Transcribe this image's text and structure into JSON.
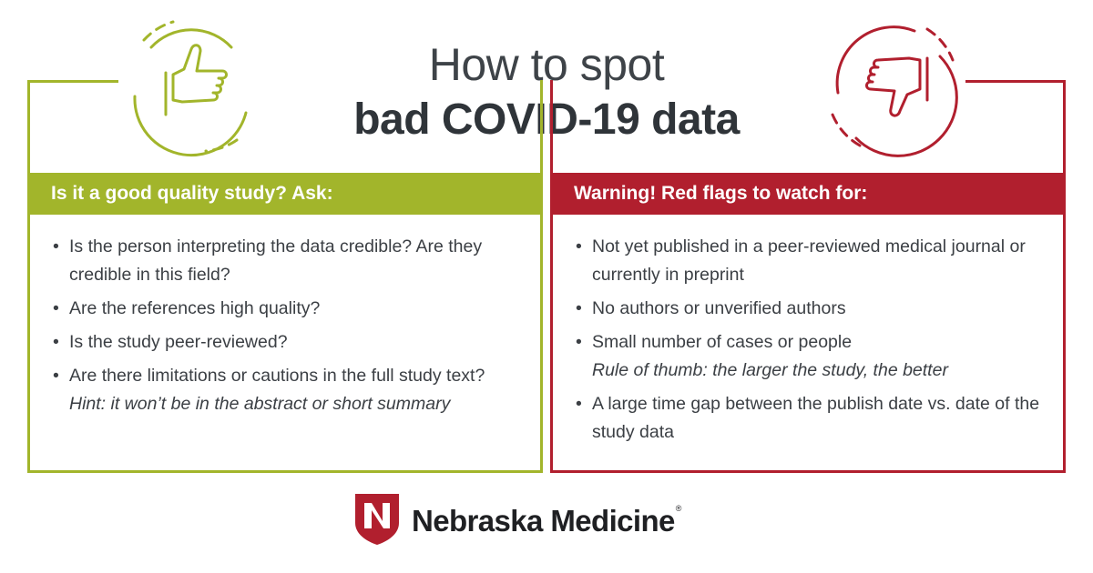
{
  "header": {
    "title_line1": "How to spot",
    "title_line2": "bad COVID-19 data"
  },
  "good_panel": {
    "heading": "Is it a good quality study? Ask:",
    "items": [
      {
        "text": "Is the person interpreting the data credible? Are they credible in this field?",
        "hint": ""
      },
      {
        "text": "Are the references high quality?",
        "hint": ""
      },
      {
        "text": "Is the study peer-reviewed?",
        "hint": ""
      },
      {
        "text": "Are there limitations or cautions in the full study text?",
        "hint": "Hint: it won’t be in the abstract or short summary"
      }
    ],
    "icon": "thumbs-up-icon",
    "color": "#a2b52b"
  },
  "bad_panel": {
    "heading": "Warning! Red flags to watch for:",
    "items": [
      {
        "text": "Not yet published in a peer-reviewed medical journal or currently in preprint",
        "hint": ""
      },
      {
        "text": "No authors or unverified authors",
        "hint": ""
      },
      {
        "text": "Small number of cases or people",
        "hint": "Rule of thumb: the larger the study, the better"
      },
      {
        "text": "A large time gap between the publish date vs. date of the study data",
        "hint": ""
      }
    ],
    "icon": "thumbs-down-icon",
    "color": "#b11f2e"
  },
  "bullet": "•",
  "logo": {
    "text": "Nebraska Medicine",
    "trademark": "®",
    "icon": "nebraska-n-shield-icon",
    "color": "#b11f2e"
  }
}
